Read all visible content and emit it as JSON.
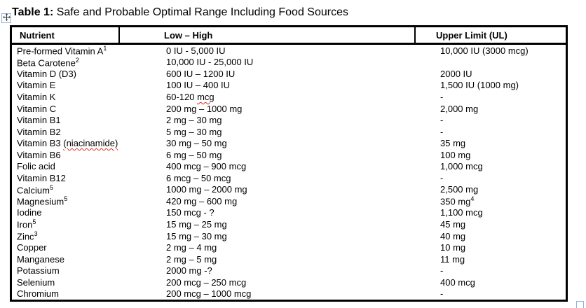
{
  "title": {
    "bold": "Table 1:",
    "rest": " Safe and Probable Optimal Range Including Food Sources"
  },
  "colors": {
    "text": "#000000",
    "table_border": "#000000",
    "handle_border": "#8fb3dc",
    "squiggle": "#e02b20"
  },
  "icons": {
    "table_move_handle": "four-direction-move-arrow",
    "table_resize_handle": "open-square-resize"
  },
  "table": {
    "headers": [
      "Nutrient",
      "Low – High",
      "Upper Limit (UL)"
    ],
    "rows": [
      {
        "nutrient": "Pre-formed Vitamin A",
        "nutrient_sup": "1",
        "range": "0 IU - 5,000 IU",
        "upper_limit": "10,000 IU (3000 mcg)"
      },
      {
        "nutrient": "Beta Carotene",
        "nutrient_sup": "2",
        "range": "10,000 IU - 25,000 IU",
        "upper_limit": ""
      },
      {
        "nutrient": "Vitamin D (D3)",
        "range": "600 IU – 1200 IU",
        "upper_limit": "2000 IU"
      },
      {
        "nutrient": "Vitamin E",
        "range": "100 IU – 400 IU",
        "upper_limit": "1,500 IU (1000 mg)"
      },
      {
        "nutrient": "Vitamin K",
        "range": "60-120 mcg",
        "range_misspelled": "mcg",
        "upper_limit": "-"
      },
      {
        "nutrient": "Vitamin C",
        "range": "200 mg – 1000 mg",
        "upper_limit": "2,000 mg"
      },
      {
        "nutrient": "Vitamin B1",
        "range": "2 mg – 30 mg",
        "upper_limit": "-"
      },
      {
        "nutrient": "Vitamin B2",
        "range": "5 mg – 30 mg",
        "upper_limit": "-"
      },
      {
        "nutrient": "Vitamin B3 (niacinamide)",
        "nutrient_misspelled": "(niacinamide)",
        "range": "30 mg – 50 mg",
        "upper_limit": "35 mg"
      },
      {
        "nutrient": "Vitamin B6",
        "range": "6 mg – 50 mg",
        "upper_limit": "100 mg"
      },
      {
        "nutrient": "Folic acid",
        "range": "400 mcg – 900 mcg",
        "upper_limit": "1,000 mcg"
      },
      {
        "nutrient": "Vitamin B12",
        "range": "6 mcg – 50 mcg",
        "upper_limit": "-"
      },
      {
        "nutrient": "Calcium",
        "nutrient_sup": "5",
        "range": "1000 mg – 2000 mg",
        "upper_limit": "2,500 mg"
      },
      {
        "nutrient": "Magnesium",
        "nutrient_sup": "5",
        "range": "420 mg – 600 mg",
        "upper_limit": "350 mg",
        "upper_sup": "4"
      },
      {
        "nutrient": "Iodine",
        "range": "150 mcg - ?",
        "upper_limit": "1,100 mcg"
      },
      {
        "nutrient": "Iron",
        "nutrient_sup": "5",
        "range": "15 mg – 25 mg",
        "upper_limit": "45 mg"
      },
      {
        "nutrient": "Zinc",
        "nutrient_sup": "3",
        "range": "15 mg – 30 mg",
        "upper_limit": "40 mg"
      },
      {
        "nutrient": "Copper",
        "range": "2 mg – 4 mg",
        "upper_limit": "10 mg"
      },
      {
        "nutrient": "Manganese",
        "range": "2 mg – 5 mg",
        "upper_limit": "11 mg"
      },
      {
        "nutrient": "Potassium",
        "range": "2000 mg -?",
        "upper_limit": "-"
      },
      {
        "nutrient": "Selenium",
        "range": "200 mcg – 250 mcg",
        "upper_limit": "400 mcg"
      },
      {
        "nutrient": "Chromium",
        "range": "200 mcg – 1000 mcg",
        "upper_limit": "-"
      }
    ]
  }
}
